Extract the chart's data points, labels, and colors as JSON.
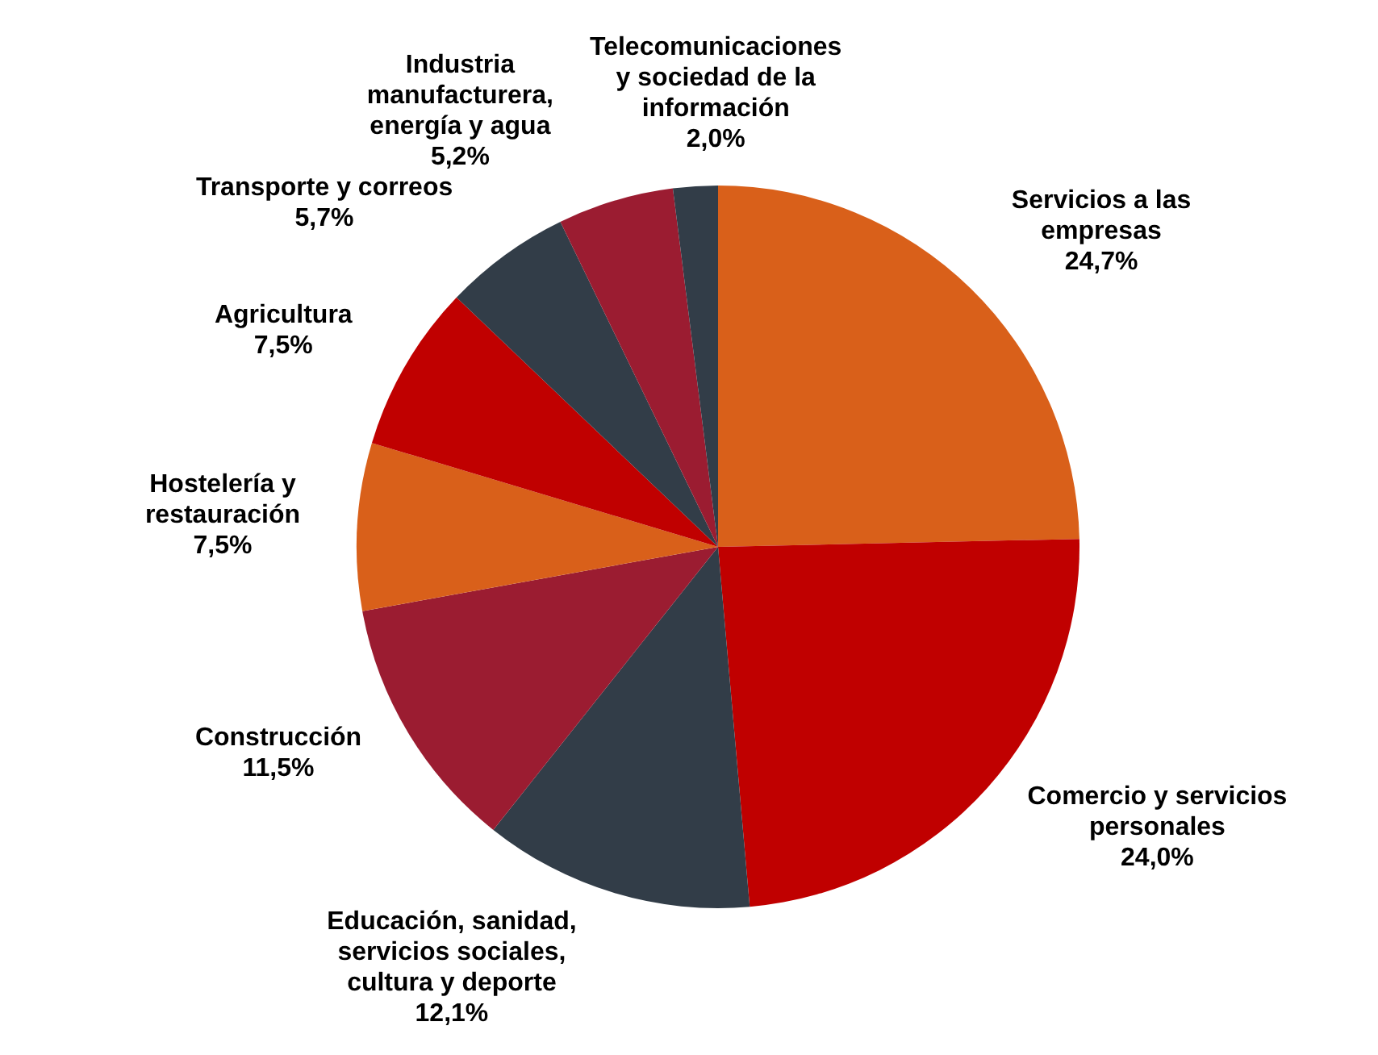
{
  "chart_data": {
    "type": "pie",
    "categories": [
      "Servicios a las empresas",
      "Comercio y servicios personales",
      "Educación, sanidad, servicios sociales, cultura y deporte",
      "Construcción",
      "Hostelería y restauración",
      "Agricultura",
      "Transporte y correos",
      "Industria manufacturera, energía y agua",
      "Telecomunicaciones y sociedad de la información"
    ],
    "values": [
      24.7,
      24.0,
      12.1,
      11.5,
      7.5,
      7.5,
      5.7,
      5.2,
      2.0
    ],
    "value_labels": [
      "24,7%",
      "24,0%",
      "12,1%",
      "11,5%",
      "7,5%",
      "7,5%",
      "5,7%",
      "5,2%",
      "2,0%"
    ],
    "colors": [
      "#d9601a",
      "#c00000",
      "#323d48",
      "#9b1c31",
      "#d9601a",
      "#c00000",
      "#323d48",
      "#9b1c31",
      "#323d48"
    ],
    "legend": false
  }
}
